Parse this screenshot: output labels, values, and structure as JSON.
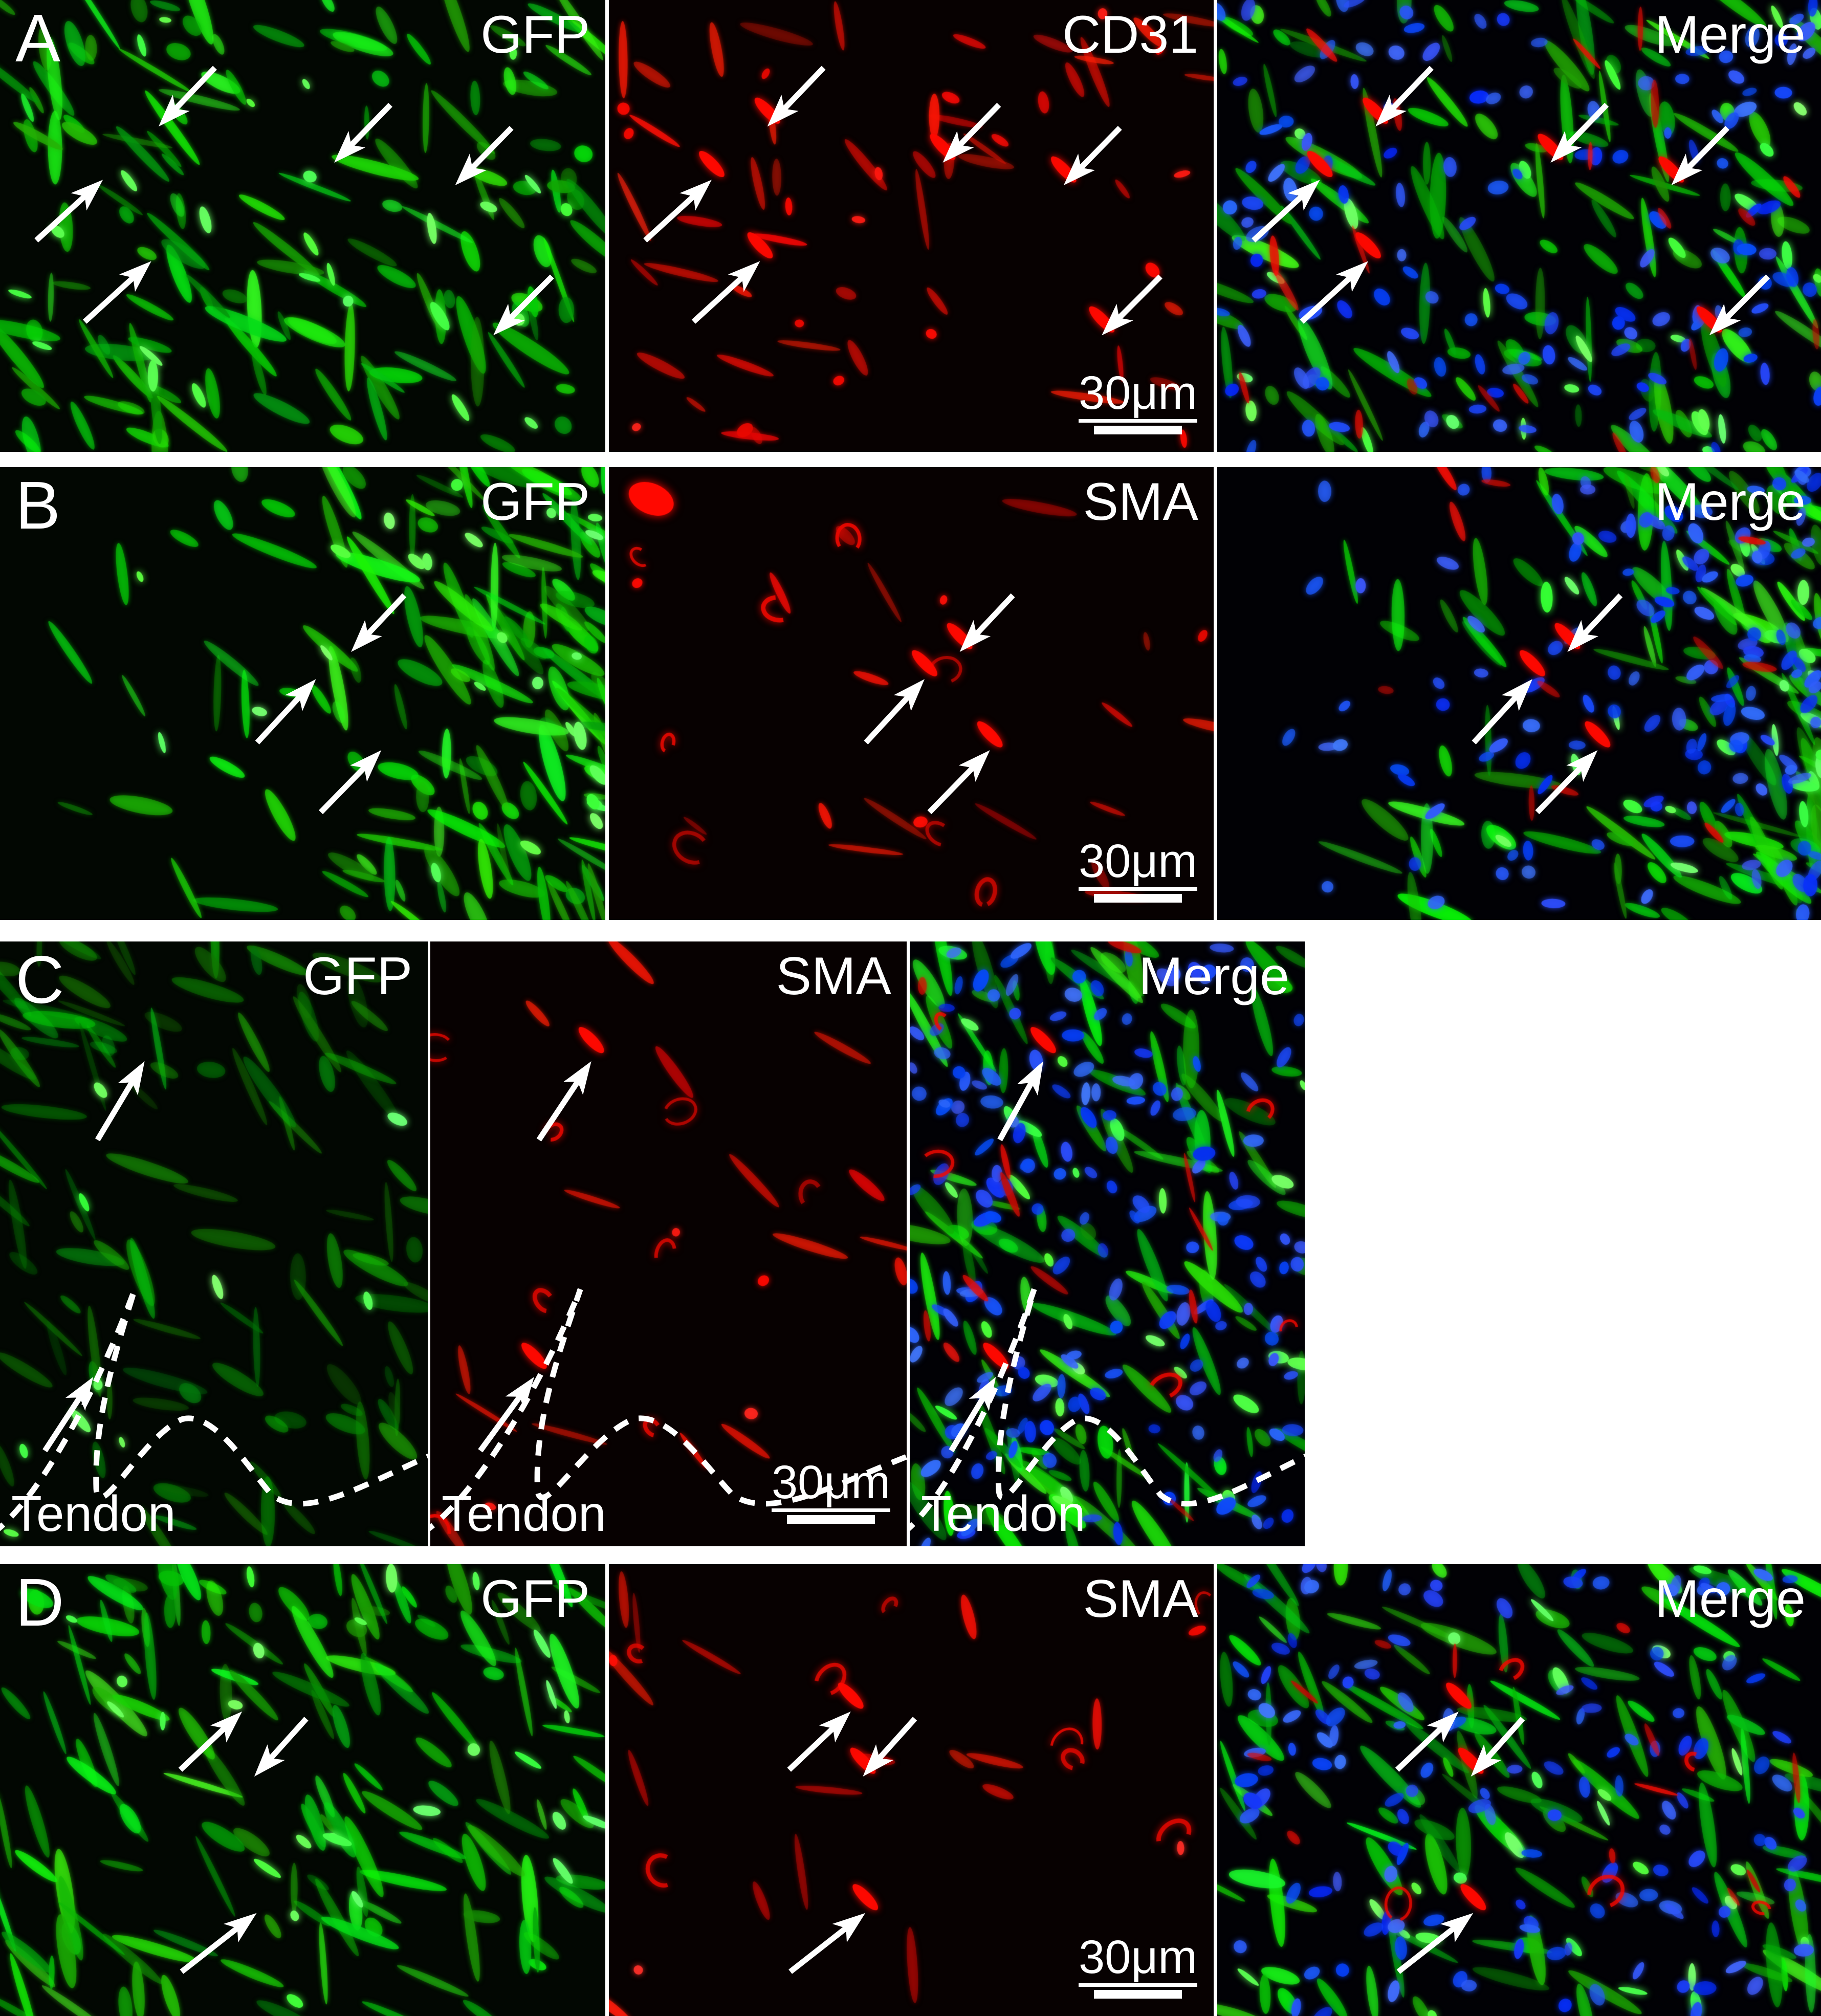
{
  "figure": {
    "description": "Immunofluorescence microscopy panel figure",
    "scale_bar_label": "30μm",
    "region_label": "Tendon",
    "rows": [
      {
        "letter": "A",
        "panels": [
          {
            "stain_label": "GFP",
            "channel": "green"
          },
          {
            "stain_label": "CD31",
            "channel": "red",
            "has_scale_bar": true
          },
          {
            "stain_label": "Merge",
            "channel": "merge"
          }
        ],
        "arrows": [
          {
            "tail": [
              0.355,
              0.15
            ],
            "head": [
              0.262,
              0.28
            ]
          },
          {
            "tail": [
              0.645,
              0.232
            ],
            "head": [
              0.552,
              0.36
            ]
          },
          {
            "tail": [
              0.845,
              0.283
            ],
            "head": [
              0.752,
              0.41
            ]
          },
          {
            "tail": [
              0.06,
              0.532
            ],
            "head": [
              0.17,
              0.398
            ]
          },
          {
            "tail": [
              0.14,
              0.712
            ],
            "head": [
              0.25,
              0.578
            ]
          },
          {
            "tail": [
              0.912,
              0.612
            ],
            "head": [
              0.815,
              0.742
            ]
          }
        ]
      },
      {
        "letter": "B",
        "panels": [
          {
            "stain_label": "GFP",
            "channel": "green"
          },
          {
            "stain_label": "SMA",
            "channel": "red",
            "has_scale_bar": true
          },
          {
            "stain_label": "Merge",
            "channel": "merge"
          }
        ],
        "arrows": [
          {
            "tail": [
              0.668,
              0.283
            ],
            "head": [
              0.58,
              0.408
            ]
          },
          {
            "tail": [
              0.425,
              0.608
            ],
            "head": [
              0.522,
              0.468
            ]
          },
          {
            "tail": [
              0.53,
              0.762
            ],
            "head": [
              0.63,
              0.625
            ]
          }
        ]
      },
      {
        "letter": "C",
        "panels": [
          {
            "stain_label": "GFP",
            "channel": "green",
            "region_label": "Tendon",
            "has_boundary_line": true
          },
          {
            "stain_label": "SMA",
            "channel": "red",
            "region_label": "Tendon",
            "has_boundary_line": true,
            "has_scale_bar": true
          },
          {
            "stain_label": "Merge",
            "channel": "merge",
            "region_label": "Tendon",
            "has_boundary_line": true
          }
        ],
        "arrows": [
          {
            "tail": [
              0.228,
              0.328
            ],
            "head": [
              0.338,
              0.198
            ]
          },
          {
            "tail": [
              0.105,
              0.842
            ],
            "head": [
              0.218,
              0.72
            ]
          }
        ]
      },
      {
        "letter": "D",
        "panels": [
          {
            "stain_label": "GFP",
            "channel": "green"
          },
          {
            "stain_label": "SMA",
            "channel": "red",
            "has_scale_bar": true
          },
          {
            "stain_label": "Merge",
            "channel": "merge"
          }
        ],
        "arrows": [
          {
            "tail": [
              0.298,
              0.455
            ],
            "head": [
              0.4,
              0.326
            ]
          },
          {
            "tail": [
              0.506,
              0.342
            ],
            "head": [
              0.42,
              0.47
            ]
          },
          {
            "tail": [
              0.3,
              0.902
            ],
            "head": [
              0.424,
              0.772
            ]
          }
        ]
      }
    ],
    "colors": {
      "gfp_green": "#22cc22",
      "stain_red": "#dd1010",
      "dapi_blue": "#2b46ff",
      "annotation_white": "#ffffff",
      "figure_background": "#ffffff",
      "panel_background": "#040404"
    }
  }
}
